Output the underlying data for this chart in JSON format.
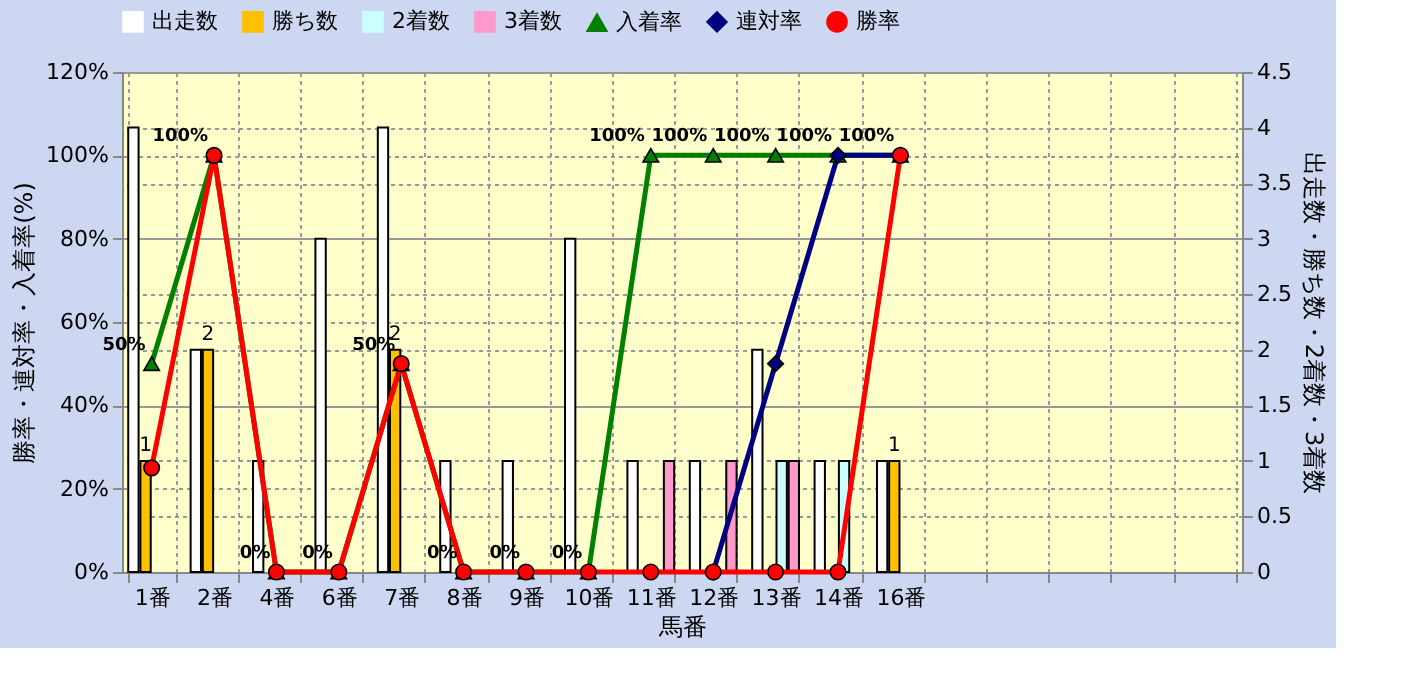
{
  "chart_data": {
    "type": "bar",
    "xlabel": "馬番",
    "ylabel": "勝率・連対率・入着率(%)",
    "y2label": "出走数・勝ち数・2着数・3着数",
    "categories": [
      "1番",
      "2番",
      "4番",
      "6番",
      "7番",
      "8番",
      "9番",
      "10番",
      "11番",
      "12番",
      "13番",
      "14番",
      "16番",
      null,
      null,
      null,
      null,
      null
    ],
    "series": [
      {
        "name": "出走数",
        "axis": "y2",
        "color": "#ffffff",
        "values": [
          4,
          2,
          1,
          3,
          4,
          1,
          1,
          3,
          1,
          1,
          2,
          1,
          1,
          null,
          null,
          null,
          null,
          null
        ]
      },
      {
        "name": "勝ち数",
        "axis": "y2",
        "color": "#ffc000",
        "values": [
          1,
          2,
          null,
          null,
          2,
          null,
          null,
          null,
          null,
          null,
          null,
          null,
          1,
          null,
          null,
          null,
          null,
          null
        ],
        "value_labels": [
          "1",
          "2",
          null,
          null,
          "2",
          null,
          null,
          null,
          null,
          null,
          null,
          null,
          "1",
          null,
          null,
          null,
          null,
          null
        ]
      },
      {
        "name": "2着数",
        "axis": "y2",
        "color": "#ccffff",
        "values": [
          null,
          null,
          null,
          null,
          null,
          null,
          null,
          null,
          null,
          null,
          1,
          1,
          null,
          null,
          null,
          null,
          null,
          null
        ]
      },
      {
        "name": "3着数",
        "axis": "y2",
        "color": "#ff99cc",
        "values": [
          null,
          null,
          null,
          null,
          null,
          null,
          null,
          null,
          1,
          1,
          1,
          null,
          null,
          null,
          null,
          null,
          null,
          null
        ]
      },
      {
        "name": "入着率",
        "type": "line",
        "marker": "triangle",
        "color": "#008000",
        "values": [
          50,
          100,
          0,
          0,
          50,
          0,
          0,
          0,
          100,
          100,
          100,
          100,
          100,
          null,
          null,
          null,
          null,
          null
        ],
        "value_labels": [
          "50%",
          "100%",
          "0%",
          "0%",
          "50%",
          "0%",
          "0%",
          "0%",
          "100%",
          "100%",
          "100%",
          "100%",
          "100%",
          null,
          null,
          null,
          null,
          null
        ]
      },
      {
        "name": "連対率",
        "type": "line",
        "marker": "diamond",
        "color": "#000080",
        "values": [
          null,
          null,
          null,
          null,
          null,
          null,
          null,
          null,
          null,
          0,
          50,
          100,
          100,
          null,
          null,
          null,
          null,
          null
        ]
      },
      {
        "name": "勝率",
        "type": "line",
        "marker": "circle",
        "color": "#ff0000",
        "values": [
          25,
          100,
          0,
          0,
          50,
          0,
          0,
          0,
          0,
          0,
          0,
          0,
          100,
          null,
          null,
          null,
          null,
          null
        ]
      }
    ],
    "ylim": [
      0,
      120
    ],
    "yticks": [
      {
        "value": 0,
        "label": "0%"
      },
      {
        "value": 20,
        "label": "20%"
      },
      {
        "value": 40,
        "label": "40%"
      },
      {
        "value": 60,
        "label": "60%"
      },
      {
        "value": 80,
        "label": "80%"
      },
      {
        "value": 100,
        "label": "100%"
      },
      {
        "value": 120,
        "label": "120%"
      }
    ],
    "y2lim": [
      0,
      4.5
    ],
    "y2ticks": [
      0,
      0.5,
      1,
      1.5,
      2,
      2.5,
      3,
      3.5,
      4,
      4.5
    ],
    "grid": true,
    "legend": "top"
  }
}
